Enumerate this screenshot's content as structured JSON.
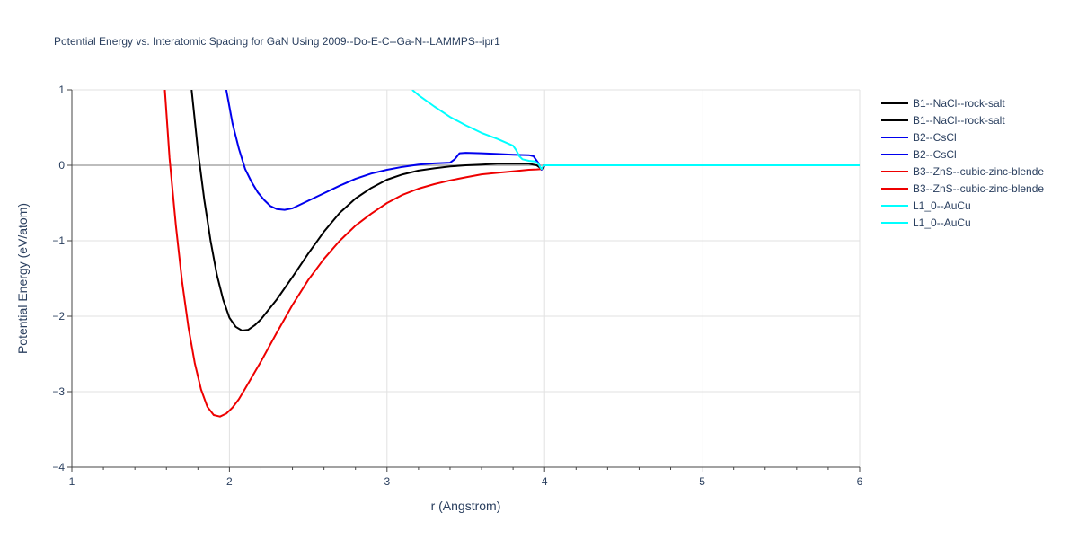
{
  "chart_data": {
    "type": "line",
    "title": "Potential Energy vs. Interatomic Spacing for GaN Using 2009--Do-E-C--Ga-N--LAMMPS--ipr1",
    "xlabel": "r (Angstrom)",
    "ylabel": "Potential Energy (eV/atom)",
    "xlim": [
      1,
      6
    ],
    "ylim": [
      -4,
      1
    ],
    "x_ticks": [
      "1",
      "2",
      "3",
      "4",
      "5",
      "6"
    ],
    "y_ticks": [
      "−4",
      "−3",
      "−2",
      "−1",
      "0",
      "1"
    ],
    "grid": true,
    "legend_position": "right",
    "series": [
      {
        "name": "B1--NaCl--rock-salt",
        "color": "#000000",
        "x": [
          1.76,
          1.8,
          1.84,
          1.88,
          1.92,
          1.96,
          2.0,
          2.04,
          2.08,
          2.12,
          2.16,
          2.2,
          2.3,
          2.4,
          2.5,
          2.6,
          2.7,
          2.8,
          2.9,
          3.0,
          3.1,
          3.2,
          3.3,
          3.4,
          3.5,
          3.6,
          3.7,
          3.8,
          3.9,
          3.95,
          3.97,
          3.99,
          4.0,
          4.5,
          5.0,
          5.5,
          6.0
        ],
        "y": [
          1.0,
          0.2,
          -0.45,
          -1.0,
          -1.45,
          -1.78,
          -2.02,
          -2.14,
          -2.19,
          -2.18,
          -2.12,
          -2.04,
          -1.78,
          -1.48,
          -1.17,
          -0.88,
          -0.63,
          -0.44,
          -0.3,
          -0.19,
          -0.12,
          -0.07,
          -0.04,
          -0.015,
          0.0,
          0.01,
          0.02,
          0.02,
          0.02,
          0.0,
          -0.03,
          -0.05,
          0.0,
          0.0,
          0.0,
          0.0,
          0.0
        ]
      },
      {
        "name": "B1--NaCl--rock-salt",
        "color": "#000000",
        "x": [],
        "y": []
      },
      {
        "name": "B2--CsCl",
        "color": "#0000ee",
        "x": [
          1.98,
          2.02,
          2.06,
          2.1,
          2.14,
          2.18,
          2.22,
          2.26,
          2.3,
          2.35,
          2.4,
          2.5,
          2.6,
          2.7,
          2.8,
          2.9,
          3.0,
          3.1,
          3.2,
          3.3,
          3.4,
          3.43,
          3.46,
          3.5,
          3.6,
          3.7,
          3.8,
          3.9,
          3.93,
          3.96,
          3.98,
          4.0,
          4.5,
          5.0,
          5.5,
          6.0
        ],
        "y": [
          1.0,
          0.55,
          0.22,
          -0.05,
          -0.22,
          -0.36,
          -0.46,
          -0.54,
          -0.58,
          -0.59,
          -0.57,
          -0.47,
          -0.37,
          -0.27,
          -0.18,
          -0.11,
          -0.06,
          -0.02,
          0.01,
          0.025,
          0.035,
          0.08,
          0.16,
          0.165,
          0.16,
          0.15,
          0.14,
          0.135,
          0.12,
          0.03,
          -0.06,
          0.0,
          0.0,
          0.0,
          0.0,
          0.0
        ]
      },
      {
        "name": "B2--CsCl",
        "color": "#0000ee",
        "x": [],
        "y": []
      },
      {
        "name": "B3--ZnS--cubic-zinc-blende",
        "color": "#ee0000",
        "x": [
          1.59,
          1.62,
          1.66,
          1.7,
          1.74,
          1.78,
          1.82,
          1.86,
          1.9,
          1.94,
          1.98,
          2.02,
          2.06,
          2.1,
          2.2,
          2.3,
          2.4,
          2.5,
          2.6,
          2.7,
          2.8,
          2.9,
          3.0,
          3.1,
          3.2,
          3.3,
          3.4,
          3.5,
          3.6,
          3.7,
          3.8,
          3.9,
          3.95,
          3.98,
          4.0,
          4.5,
          5.0,
          5.5,
          6.0
        ],
        "y": [
          1.0,
          0.1,
          -0.8,
          -1.55,
          -2.15,
          -2.62,
          -2.97,
          -3.2,
          -3.31,
          -3.33,
          -3.29,
          -3.21,
          -3.1,
          -2.96,
          -2.6,
          -2.22,
          -1.85,
          -1.52,
          -1.24,
          -1.0,
          -0.8,
          -0.64,
          -0.5,
          -0.39,
          -0.31,
          -0.25,
          -0.2,
          -0.16,
          -0.12,
          -0.1,
          -0.08,
          -0.06,
          -0.055,
          -0.05,
          0.0,
          0.0,
          0.0,
          0.0,
          0.0
        ]
      },
      {
        "name": "B3--ZnS--cubic-zinc-blende",
        "color": "#ee0000",
        "x": [],
        "y": []
      },
      {
        "name": "L1_0--AuCu",
        "color": "#00ffff",
        "x": [
          3.16,
          3.2,
          3.3,
          3.4,
          3.5,
          3.6,
          3.7,
          3.8,
          3.82,
          3.84,
          3.86,
          3.9,
          3.94,
          3.96,
          3.98,
          3.99,
          4.0,
          4.5,
          5.0,
          5.5,
          6.0
        ],
        "y": [
          1.0,
          0.93,
          0.78,
          0.64,
          0.53,
          0.43,
          0.35,
          0.26,
          0.2,
          0.12,
          0.08,
          0.06,
          0.05,
          0.02,
          -0.05,
          -0.02,
          0.0,
          0.0,
          0.0,
          0.0,
          0.0
        ]
      },
      {
        "name": "L1_0--AuCu",
        "color": "#00ffff",
        "x": [],
        "y": []
      }
    ]
  }
}
